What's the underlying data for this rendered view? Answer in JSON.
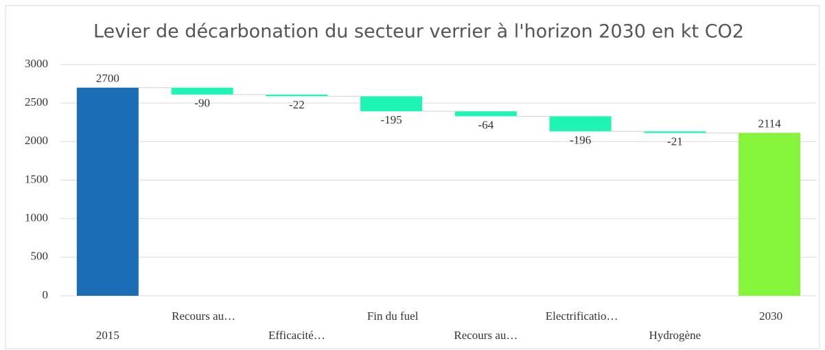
{
  "chart_data": {
    "type": "waterfall",
    "title": "Levier de décarbonation du secteur verrier à l'horizon 2030 en kt CO2",
    "categories": [
      "2015",
      "Recours au…",
      "Efficacité…",
      "Fin du fuel",
      "Recours au…",
      "Electrificatio…",
      "Hydrogène",
      "2030"
    ],
    "values": [
      2700,
      -90,
      -22,
      -195,
      -64,
      -196,
      -21,
      2114
    ],
    "colors": [
      "#1b6db5",
      "#1ef5b4",
      "#1ef5b4",
      "#1ef5b4",
      "#1ef5b4",
      "#1ef5b4",
      "#1ef5b4",
      "#84f53a"
    ],
    "ylim": [
      0,
      3000
    ],
    "yticks": [
      0,
      500,
      1000,
      1500,
      2000,
      2500,
      3000
    ],
    "grid": true
  }
}
